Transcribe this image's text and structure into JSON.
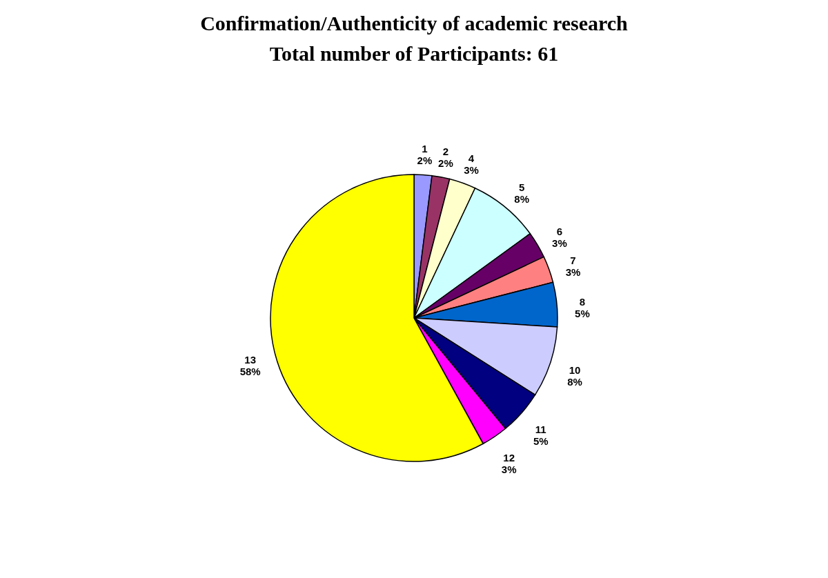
{
  "chart_data": {
    "type": "pie",
    "title": "Confirmation/Authenticity of academic research",
    "subtitle": "Total number of Participants: 61",
    "categories": [
      "1",
      "2",
      "4",
      "5",
      "6",
      "7",
      "8",
      "10",
      "11",
      "12",
      "13"
    ],
    "values": [
      2,
      2,
      3,
      8,
      3,
      3,
      5,
      8,
      5,
      3,
      58
    ],
    "value_labels": [
      "2%",
      "2%",
      "3%",
      "8%",
      "3%",
      "3%",
      "5%",
      "8%",
      "5%",
      "3%",
      "58%"
    ],
    "colors": [
      "#9999ff",
      "#993366",
      "#ffffcc",
      "#ccffff",
      "#660066",
      "#ff8080",
      "#0066cc",
      "#ccccff",
      "#000080",
      "#ff00ff",
      "#ffff00"
    ],
    "legend": false
  }
}
